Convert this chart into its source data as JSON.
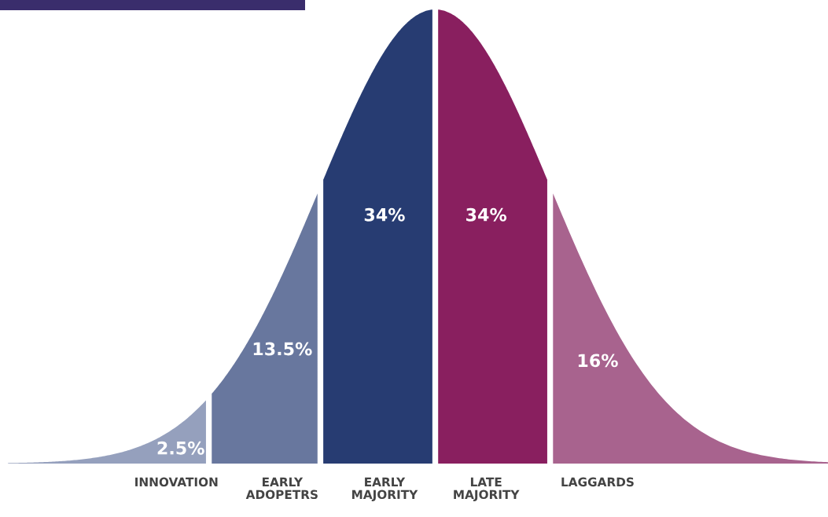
{
  "chart_data": {
    "type": "other",
    "categories": [
      "INNOVATION",
      "EARLY\nADOPETRS",
      "EARLY\nMAJORITY",
      "LATE\nMAJORITY",
      "LAGGARDS"
    ],
    "values": [
      2.5,
      13.5,
      34,
      34,
      16
    ],
    "colors": [
      "#95a0bd",
      "#68779e",
      "#273c72",
      "#891f5f",
      "#a8638e"
    ],
    "value_labels": [
      "2.5%",
      "13.5%",
      "34%",
      "34%",
      "16%"
    ]
  }
}
